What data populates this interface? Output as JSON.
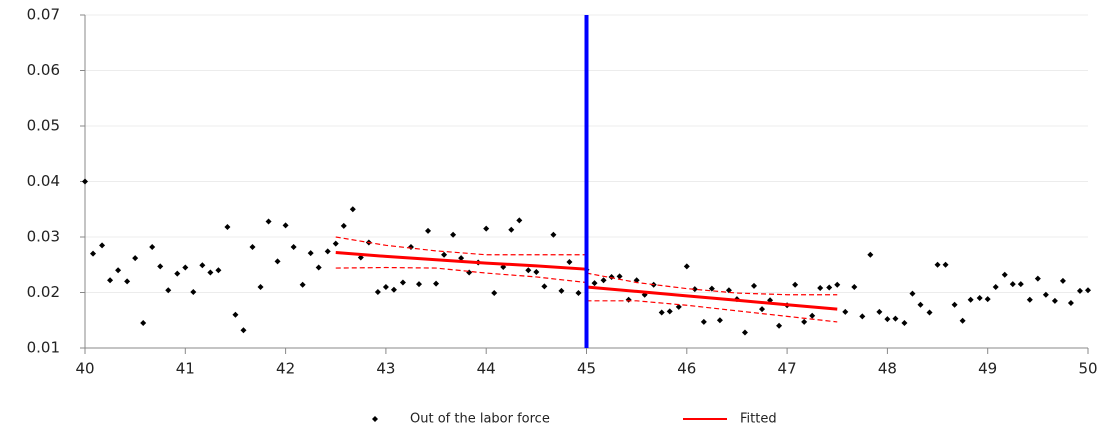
{
  "chart_data": {
    "type": "scatter",
    "xlim": [
      40,
      50
    ],
    "xticks": [
      40,
      41,
      42,
      43,
      44,
      45,
      46,
      47,
      48,
      49,
      50
    ],
    "ylim": [
      0.01,
      0.07
    ],
    "yticks": [
      0.01,
      0.02,
      0.03,
      0.04,
      0.05,
      0.06,
      0.07
    ],
    "grid": true,
    "legend": "bottom",
    "cutoff": 45,
    "cutoff_color": "#0000ff",
    "series": [
      {
        "name": "Out of the labor force",
        "kind": "points",
        "color": "#000000",
        "x": [
          40,
          40.08,
          40.17,
          40.25,
          40.33,
          40.42,
          40.5,
          40.58,
          40.67,
          40.75,
          40.83,
          40.92,
          41,
          41.08,
          41.17,
          41.25,
          41.33,
          41.42,
          41.5,
          41.58,
          41.67,
          41.75,
          41.83,
          41.92,
          42,
          42.08,
          42.17,
          42.25,
          42.33,
          42.42,
          42.5,
          42.58,
          42.67,
          42.75,
          42.83,
          42.92,
          43,
          43.08,
          43.17,
          43.25,
          43.33,
          43.42,
          43.5,
          43.58,
          43.67,
          43.75,
          43.83,
          43.92,
          44,
          44.08,
          44.17,
          44.25,
          44.33,
          44.42,
          44.5,
          44.58,
          44.67,
          44.75,
          44.83,
          44.92,
          45,
          45.08,
          45.17,
          45.25,
          45.33,
          45.42,
          45.5,
          45.58,
          45.67,
          45.75,
          45.83,
          45.92,
          46,
          46.08,
          46.17,
          46.25,
          46.33,
          46.42,
          46.5,
          46.58,
          46.67,
          46.75,
          46.83,
          46.92,
          47,
          47.08,
          47.17,
          47.25,
          47.33,
          47.42,
          47.5,
          47.58,
          47.67,
          47.75,
          47.83,
          47.92,
          48,
          48.08,
          48.17,
          48.25,
          48.33,
          48.42,
          48.5,
          48.58,
          48.67,
          48.75,
          48.83,
          48.92,
          49,
          49.08,
          49.17,
          49.25,
          49.33,
          49.42,
          49.5,
          49.58,
          49.67,
          49.75,
          49.83,
          49.92,
          50
        ],
        "values": [
          0.04,
          0.027,
          0.0285,
          0.0222,
          0.024,
          0.022,
          0.0262,
          0.0145,
          0.0282,
          0.0247,
          0.0204,
          0.0234,
          0.0245,
          0.0201,
          0.0249,
          0.0236,
          0.024,
          0.0318,
          0.016,
          0.0132,
          0.0282,
          0.021,
          0.0328,
          0.0256,
          0.0321,
          0.0282,
          0.0214,
          0.0271,
          0.0245,
          0.0274,
          0.0288,
          0.032,
          0.035,
          0.0263,
          0.029,
          0.0201,
          0.021,
          0.0205,
          0.0218,
          0.0282,
          0.0215,
          0.0311,
          0.0216,
          0.0268,
          0.0304,
          0.0262,
          0.0236,
          0.0254,
          0.0315,
          0.0199,
          0.0246,
          0.0313,
          0.033,
          0.024,
          0.0237,
          0.0211,
          0.0304,
          0.0203,
          0.0255,
          0.0199,
          0.0241,
          0.0217,
          0.0222,
          0.0228,
          0.0229,
          0.0187,
          0.0222,
          0.0196,
          0.0214,
          0.0164,
          0.0166,
          0.0174,
          0.0247,
          0.0206,
          0.0147,
          0.0207,
          0.015,
          0.0204,
          0.0188,
          0.0128,
          0.0212,
          0.017,
          0.0186,
          0.014,
          0.0177,
          0.0214,
          0.0147,
          0.0158,
          0.0208,
          0.0209,
          0.0214,
          0.0165,
          0.021,
          0.0157,
          0.0268,
          0.0165,
          0.0152,
          0.0153,
          0.0145,
          0.0198,
          0.0178,
          0.0164,
          0.025,
          0.025,
          0.0178,
          0.0149,
          0.0187,
          0.019,
          0.0188,
          0.021,
          0.0232,
          0.0215,
          0.0215,
          0.0187,
          0.0225,
          0.0196,
          0.0185,
          0.0221,
          0.0181,
          0.0203,
          0.0204
        ]
      },
      {
        "name": "Fitted",
        "kind": "line",
        "color": "#ff0000",
        "width": 3,
        "x": [
          42.5,
          43,
          43.5,
          44,
          44.5,
          45,
          45,
          45,
          45.5,
          46,
          46.5,
          47,
          47.5
        ],
        "values": [
          0.0272,
          0.0265,
          0.0259,
          0.0253,
          0.0248,
          0.0242,
          null,
          0.021,
          0.0202,
          0.0194,
          0.0186,
          0.0178,
          0.017
        ]
      },
      {
        "kind": "line",
        "color": "#ff0000",
        "width": 1.2,
        "dashed": true,
        "x": [
          42.5,
          43,
          43.5,
          44,
          44.5,
          45,
          45,
          45,
          45.5,
          46,
          46.5,
          47,
          47.5
        ],
        "values": [
          0.03,
          0.0285,
          0.0275,
          0.0268,
          0.0268,
          0.0268,
          null,
          0.0235,
          0.0218,
          0.0207,
          0.0199,
          0.0196,
          0.0196
        ]
      },
      {
        "kind": "line",
        "color": "#ff0000",
        "width": 1.2,
        "dashed": true,
        "x": [
          42.5,
          43,
          43.5,
          44,
          44.5,
          45,
          45,
          45,
          45.5,
          46,
          46.5,
          47,
          47.5
        ],
        "values": [
          0.0244,
          0.0245,
          0.0244,
          0.0235,
          0.0228,
          0.0218,
          null,
          0.0185,
          0.0185,
          0.0177,
          0.0167,
          0.0157,
          0.0147
        ]
      }
    ]
  }
}
